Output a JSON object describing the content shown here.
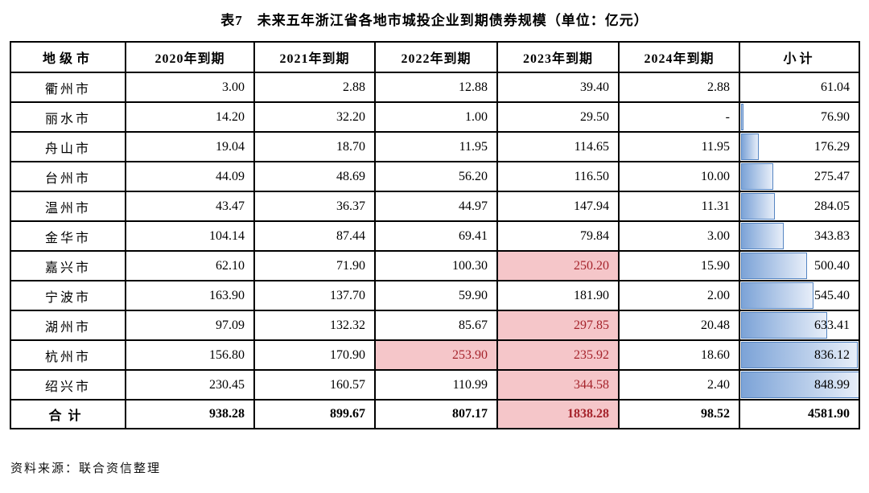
{
  "title": "表7　未来五年浙江省各地市城投企业到期债券规模（单位：亿元）",
  "source": "资料来源：联合资信整理",
  "colors": {
    "highlight_bg": "#f5c6c9",
    "highlight_text": "#a5232b",
    "bar_border": "#5585c2",
    "bar_fill_start": "#7ca3d7",
    "bar_fill_end": "#e7eef9"
  },
  "table": {
    "headers": [
      "地级市",
      "2020年到期",
      "2021年到期",
      "2022年到期",
      "2023年到期",
      "2024年到期",
      "小计"
    ],
    "rows": [
      {
        "city": "衢州市",
        "values": [
          "3.00",
          "2.88",
          "12.88",
          "39.40",
          "2.88"
        ],
        "subtotal": "61.04",
        "highlight": []
      },
      {
        "city": "丽水市",
        "values": [
          "14.20",
          "32.20",
          "1.00",
          "29.50",
          "-"
        ],
        "subtotal": "76.90",
        "highlight": []
      },
      {
        "city": "舟山市",
        "values": [
          "19.04",
          "18.70",
          "11.95",
          "114.65",
          "11.95"
        ],
        "subtotal": "176.29",
        "highlight": []
      },
      {
        "city": "台州市",
        "values": [
          "44.09",
          "48.69",
          "56.20",
          "116.50",
          "10.00"
        ],
        "subtotal": "275.47",
        "highlight": []
      },
      {
        "city": "温州市",
        "values": [
          "43.47",
          "36.37",
          "44.97",
          "147.94",
          "11.31"
        ],
        "subtotal": "284.05",
        "highlight": []
      },
      {
        "city": "金华市",
        "values": [
          "104.14",
          "87.44",
          "69.41",
          "79.84",
          "3.00"
        ],
        "subtotal": "343.83",
        "highlight": []
      },
      {
        "city": "嘉兴市",
        "values": [
          "62.10",
          "71.90",
          "100.30",
          "250.20",
          "15.90"
        ],
        "subtotal": "500.40",
        "highlight": [
          3
        ]
      },
      {
        "city": "宁波市",
        "values": [
          "163.90",
          "137.70",
          "59.90",
          "181.90",
          "2.00"
        ],
        "subtotal": "545.40",
        "highlight": []
      },
      {
        "city": "湖州市",
        "values": [
          "97.09",
          "132.32",
          "85.67",
          "297.85",
          "20.48"
        ],
        "subtotal": "633.41",
        "highlight": [
          3
        ]
      },
      {
        "city": "杭州市",
        "values": [
          "156.80",
          "170.90",
          "253.90",
          "235.92",
          "18.60"
        ],
        "subtotal": "836.12",
        "highlight": [
          2,
          3
        ]
      },
      {
        "city": "绍兴市",
        "values": [
          "230.45",
          "160.57",
          "110.99",
          "344.58",
          "2.40"
        ],
        "subtotal": "848.99",
        "highlight": [
          3
        ]
      }
    ],
    "total_row": {
      "city": "合计",
      "values": [
        "938.28",
        "899.67",
        "807.17",
        "1838.28",
        "98.52"
      ],
      "subtotal": "4581.90",
      "highlight": [
        3
      ]
    }
  },
  "chart_data": {
    "type": "table",
    "title": "表7 未来五年浙江省各地市城投企业到期债券规模（单位：亿元）",
    "columns": [
      "地级市",
      "2020年到期",
      "2021年到期",
      "2022年到期",
      "2023年到期",
      "2024年到期",
      "小计"
    ],
    "rows": [
      [
        "衢州市",
        3.0,
        2.88,
        12.88,
        39.4,
        2.88,
        61.04
      ],
      [
        "丽水市",
        14.2,
        32.2,
        1.0,
        29.5,
        null,
        76.9
      ],
      [
        "舟山市",
        19.04,
        18.7,
        11.95,
        114.65,
        11.95,
        176.29
      ],
      [
        "台州市",
        44.09,
        48.69,
        56.2,
        116.5,
        10.0,
        275.47
      ],
      [
        "温州市",
        43.47,
        36.37,
        44.97,
        147.94,
        11.31,
        284.05
      ],
      [
        "金华市",
        104.14,
        87.44,
        69.41,
        79.84,
        3.0,
        343.83
      ],
      [
        "嘉兴市",
        62.1,
        71.9,
        100.3,
        250.2,
        15.9,
        500.4
      ],
      [
        "宁波市",
        163.9,
        137.7,
        59.9,
        181.9,
        2.0,
        545.4
      ],
      [
        "湖州市",
        97.09,
        132.32,
        85.67,
        297.85,
        20.48,
        633.41
      ],
      [
        "杭州市",
        156.8,
        170.9,
        253.9,
        235.92,
        18.6,
        836.12
      ],
      [
        "绍兴市",
        230.45,
        160.57,
        110.99,
        344.58,
        2.4,
        848.99
      ],
      [
        "合计",
        938.28,
        899.67,
        807.17,
        1838.28,
        98.52,
        4581.9
      ]
    ]
  }
}
